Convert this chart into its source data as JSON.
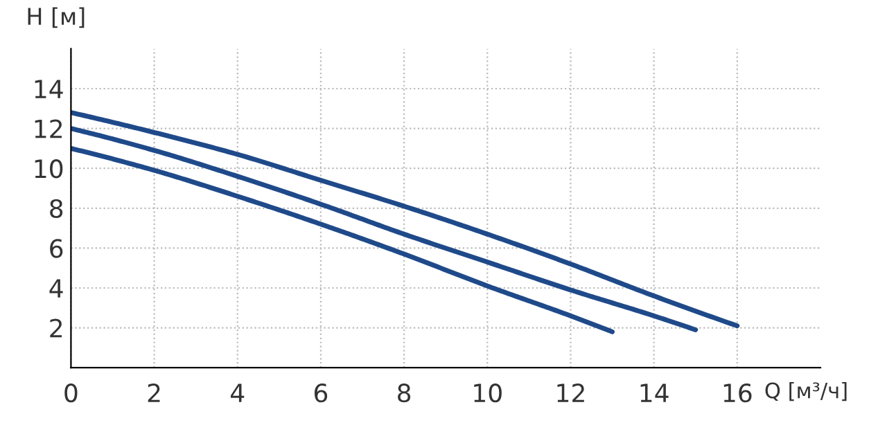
{
  "chart_data": {
    "type": "line",
    "xlabel": "Q [м³/ч]",
    "ylabel": "H [м]",
    "xlim": [
      0,
      18
    ],
    "ylim": [
      0,
      16
    ],
    "xticks": [
      0,
      2,
      4,
      6,
      8,
      10,
      12,
      14,
      16
    ],
    "yticks": [
      2,
      4,
      6,
      8,
      10,
      12,
      14
    ],
    "grid": true,
    "marker": "none",
    "line_style": "solid",
    "series": [
      {
        "color": "#1f4a8a",
        "x": [
          0,
          2,
          4,
          6,
          8,
          10,
          12,
          14,
          16
        ],
        "values": [
          12.8,
          11.8,
          10.7,
          9.4,
          8.1,
          6.7,
          5.2,
          3.6,
          2.1
        ]
      },
      {
        "color": "#1f4a8a",
        "x": [
          0,
          2,
          4,
          6,
          8,
          10,
          12,
          14,
          15
        ],
        "values": [
          12.0,
          10.9,
          9.6,
          8.2,
          6.7,
          5.3,
          3.9,
          2.6,
          1.9
        ]
      },
      {
        "color": "#1f4a8a",
        "x": [
          0,
          2,
          4,
          6,
          8,
          10,
          12,
          13
        ],
        "values": [
          11.0,
          9.9,
          8.6,
          7.2,
          5.7,
          4.1,
          2.6,
          1.8
        ]
      }
    ]
  }
}
